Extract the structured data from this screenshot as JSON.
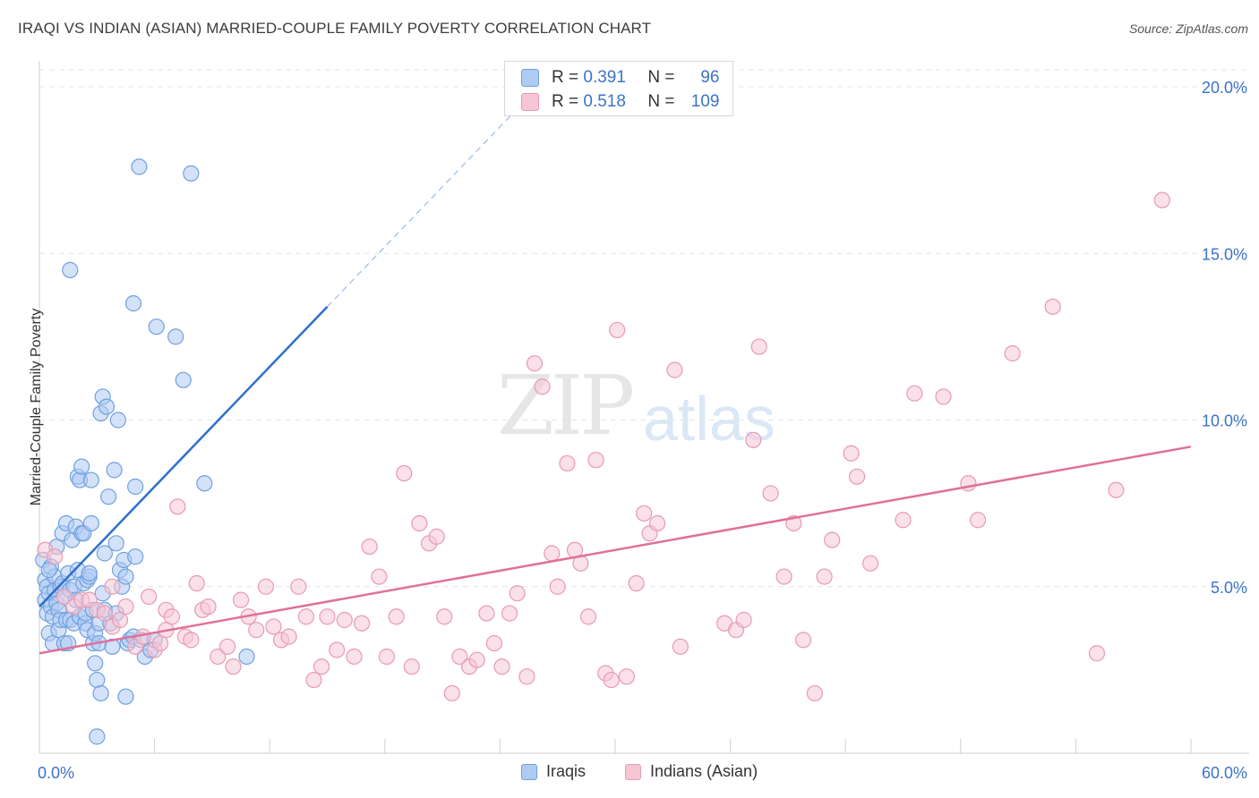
{
  "title": "IRAQI VS INDIAN (ASIAN) MARRIED-COUPLE FAMILY POVERTY CORRELATION CHART",
  "source": "Source: ZipAtlas.com",
  "watermark": {
    "zip": "ZIP",
    "atlas": "atlas"
  },
  "legend_stats": [
    {
      "r_label": "R =",
      "r_value": "0.391",
      "n_label": "N =",
      "n_value": "96"
    },
    {
      "r_label": "R =",
      "r_value": "0.518",
      "n_label": "N =",
      "n_value": "109"
    }
  ],
  "legend_bottom": [
    "Iraqis",
    "Indians (Asian)"
  ],
  "colors": {
    "iraqi_fill": "#aecbf2",
    "iraqi_stroke": "#6fa0e0",
    "iraqi_line": "#2d6fcc",
    "indian_fill": "#f6c6d5",
    "indian_stroke": "#e89ab3",
    "indian_line": "#e0709a",
    "axis_label": "#3b73c8",
    "grid": "#e4e4e4"
  },
  "chart_data": {
    "type": "scatter",
    "title": "IRAQI VS INDIAN (ASIAN) MARRIED-COUPLE FAMILY POVERTY CORRELATION CHART",
    "xlabel": "",
    "ylabel": "Married-Couple Family Poverty",
    "xlim": [
      0,
      60
    ],
    "ylim": [
      0,
      20
    ],
    "x_tick_labels": [
      "0.0%",
      "60.0%"
    ],
    "y_ticks": [
      5,
      10,
      15,
      20
    ],
    "y_tick_labels": [
      "5.0%",
      "10.0%",
      "15.0%",
      "20.0%"
    ],
    "grid": true,
    "series": [
      {
        "name": "Iraqis",
        "r": 0.391,
        "n": 96,
        "trend": {
          "x0": 0,
          "y0": 4.4,
          "x1": 15,
          "y1": 13.4,
          "dash_x1": 26,
          "dash_y1": 20
        },
        "points": [
          [
            0.2,
            5.8
          ],
          [
            0.3,
            5.2
          ],
          [
            0.3,
            4.6
          ],
          [
            0.4,
            4.2
          ],
          [
            0.4,
            5.0
          ],
          [
            0.5,
            4.8
          ],
          [
            0.5,
            3.6
          ],
          [
            0.6,
            4.4
          ],
          [
            0.6,
            5.6
          ],
          [
            0.7,
            4.1
          ],
          [
            0.7,
            3.3
          ],
          [
            0.8,
            4.9
          ],
          [
            0.8,
            5.3
          ],
          [
            0.9,
            4.5
          ],
          [
            0.9,
            6.2
          ],
          [
            1.0,
            3.7
          ],
          [
            1.0,
            4.3
          ],
          [
            1.1,
            5.0
          ],
          [
            1.1,
            4.0
          ],
          [
            1.2,
            5.1
          ],
          [
            1.2,
            6.6
          ],
          [
            1.3,
            3.3
          ],
          [
            1.3,
            4.7
          ],
          [
            1.4,
            4.0
          ],
          [
            1.4,
            6.9
          ],
          [
            1.5,
            5.4
          ],
          [
            1.5,
            3.3
          ],
          [
            1.6,
            4.9
          ],
          [
            1.6,
            4.0
          ],
          [
            1.7,
            6.4
          ],
          [
            1.8,
            5.0
          ],
          [
            1.8,
            3.9
          ],
          [
            1.9,
            4.6
          ],
          [
            1.9,
            6.8
          ],
          [
            2.0,
            5.5
          ],
          [
            2.0,
            8.3
          ],
          [
            2.1,
            4.1
          ],
          [
            2.1,
            8.2
          ],
          [
            2.2,
            6.6
          ],
          [
            2.2,
            8.6
          ],
          [
            2.3,
            6.6
          ],
          [
            2.3,
            5.1
          ],
          [
            2.4,
            3.9
          ],
          [
            2.4,
            4.2
          ],
          [
            2.5,
            5.2
          ],
          [
            2.5,
            3.7
          ],
          [
            2.6,
            5.3
          ],
          [
            2.6,
            5.4
          ],
          [
            2.7,
            6.9
          ],
          [
            2.7,
            8.2
          ],
          [
            2.8,
            3.3
          ],
          [
            2.8,
            4.3
          ],
          [
            2.9,
            2.7
          ],
          [
            2.9,
            3.6
          ],
          [
            3.0,
            2.2
          ],
          [
            3.0,
            0.5
          ],
          [
            3.1,
            3.3
          ],
          [
            3.1,
            3.9
          ],
          [
            3.2,
            1.8
          ],
          [
            3.2,
            10.2
          ],
          [
            3.3,
            10.7
          ],
          [
            3.3,
            4.8
          ],
          [
            3.4,
            4.3
          ],
          [
            3.4,
            6.0
          ],
          [
            3.5,
            10.4
          ],
          [
            3.6,
            7.7
          ],
          [
            3.7,
            3.9
          ],
          [
            3.8,
            3.2
          ],
          [
            3.9,
            8.5
          ],
          [
            4.0,
            6.3
          ],
          [
            4.0,
            4.2
          ],
          [
            4.1,
            10.0
          ],
          [
            4.2,
            5.5
          ],
          [
            4.3,
            5.0
          ],
          [
            4.4,
            5.8
          ],
          [
            4.5,
            5.3
          ],
          [
            4.5,
            1.7
          ],
          [
            4.6,
            3.3
          ],
          [
            4.7,
            3.4
          ],
          [
            4.9,
            3.5
          ],
          [
            4.9,
            13.5
          ],
          [
            5.0,
            5.9
          ],
          [
            5.0,
            8.0
          ],
          [
            5.2,
            17.6
          ],
          [
            5.3,
            3.4
          ],
          [
            5.5,
            2.9
          ],
          [
            5.8,
            3.1
          ],
          [
            6.0,
            3.4
          ],
          [
            6.1,
            12.8
          ],
          [
            7.1,
            12.5
          ],
          [
            7.5,
            11.2
          ],
          [
            7.9,
            17.4
          ],
          [
            8.6,
            8.1
          ],
          [
            10.8,
            2.9
          ],
          [
            1.6,
            14.5
          ],
          [
            0.5,
            5.5
          ]
        ]
      },
      {
        "name": "Indians (Asian)",
        "r": 0.518,
        "n": 109,
        "trend": {
          "x0": 0,
          "y0": 3.0,
          "x1": 60,
          "y1": 9.2
        },
        "points": [
          [
            0.3,
            6.1
          ],
          [
            0.8,
            5.9
          ],
          [
            1.3,
            4.7
          ],
          [
            1.8,
            4.4
          ],
          [
            2.2,
            4.6
          ],
          [
            2.6,
            4.6
          ],
          [
            3.0,
            4.3
          ],
          [
            3.4,
            4.2
          ],
          [
            3.8,
            3.8
          ],
          [
            4.2,
            4.0
          ],
          [
            4.5,
            4.4
          ],
          [
            5.0,
            3.2
          ],
          [
            5.4,
            3.5
          ],
          [
            5.7,
            4.7
          ],
          [
            6.0,
            3.1
          ],
          [
            6.3,
            3.3
          ],
          [
            6.6,
            4.3
          ],
          [
            6.9,
            4.1
          ],
          [
            7.2,
            7.4
          ],
          [
            7.6,
            3.5
          ],
          [
            7.9,
            3.4
          ],
          [
            8.2,
            5.1
          ],
          [
            8.5,
            4.3
          ],
          [
            8.8,
            4.4
          ],
          [
            9.3,
            2.9
          ],
          [
            9.8,
            3.2
          ],
          [
            10.1,
            2.6
          ],
          [
            10.5,
            4.6
          ],
          [
            10.9,
            4.1
          ],
          [
            11.3,
            3.7
          ],
          [
            11.8,
            5.0
          ],
          [
            12.2,
            3.8
          ],
          [
            12.6,
            3.4
          ],
          [
            13.0,
            3.5
          ],
          [
            13.5,
            5.0
          ],
          [
            13.9,
            4.1
          ],
          [
            14.3,
            2.2
          ],
          [
            14.7,
            2.6
          ],
          [
            15.0,
            4.1
          ],
          [
            15.5,
            3.1
          ],
          [
            15.9,
            4.0
          ],
          [
            16.4,
            2.9
          ],
          [
            16.8,
            3.9
          ],
          [
            17.2,
            6.2
          ],
          [
            17.7,
            5.3
          ],
          [
            18.1,
            2.9
          ],
          [
            18.6,
            4.1
          ],
          [
            19.0,
            8.4
          ],
          [
            19.4,
            2.6
          ],
          [
            19.8,
            6.9
          ],
          [
            20.3,
            6.3
          ],
          [
            20.7,
            6.5
          ],
          [
            21.1,
            4.1
          ],
          [
            21.5,
            1.8
          ],
          [
            21.9,
            2.9
          ],
          [
            22.4,
            2.6
          ],
          [
            22.8,
            2.8
          ],
          [
            23.3,
            4.2
          ],
          [
            23.7,
            3.3
          ],
          [
            24.1,
            2.6
          ],
          [
            24.5,
            4.2
          ],
          [
            24.9,
            4.8
          ],
          [
            25.4,
            2.3
          ],
          [
            25.8,
            11.7
          ],
          [
            26.2,
            11.0
          ],
          [
            26.7,
            6.0
          ],
          [
            27.0,
            5.0
          ],
          [
            27.5,
            8.7
          ],
          [
            27.9,
            6.1
          ],
          [
            28.2,
            5.7
          ],
          [
            28.6,
            4.1
          ],
          [
            29.0,
            8.8
          ],
          [
            29.5,
            2.4
          ],
          [
            29.8,
            2.2
          ],
          [
            30.1,
            12.7
          ],
          [
            30.6,
            2.3
          ],
          [
            31.1,
            5.1
          ],
          [
            31.5,
            7.2
          ],
          [
            31.8,
            6.6
          ],
          [
            32.2,
            6.9
          ],
          [
            33.1,
            11.5
          ],
          [
            33.4,
            3.2
          ],
          [
            35.7,
            3.9
          ],
          [
            36.3,
            3.7
          ],
          [
            36.7,
            4.0
          ],
          [
            37.2,
            9.4
          ],
          [
            37.5,
            12.2
          ],
          [
            38.1,
            7.8
          ],
          [
            38.8,
            5.3
          ],
          [
            39.3,
            6.9
          ],
          [
            39.8,
            3.4
          ],
          [
            40.4,
            1.8
          ],
          [
            40.9,
            5.3
          ],
          [
            41.3,
            6.4
          ],
          [
            42.3,
            9.0
          ],
          [
            42.6,
            8.3
          ],
          [
            43.3,
            5.7
          ],
          [
            45.0,
            7.0
          ],
          [
            45.6,
            10.8
          ],
          [
            47.1,
            10.7
          ],
          [
            48.4,
            8.1
          ],
          [
            48.9,
            7.0
          ],
          [
            50.7,
            12.0
          ],
          [
            52.8,
            13.4
          ],
          [
            55.1,
            3.0
          ],
          [
            56.1,
            7.9
          ],
          [
            58.5,
            16.6
          ],
          [
            3.8,
            5.0
          ],
          [
            6.6,
            3.7
          ]
        ]
      }
    ]
  }
}
